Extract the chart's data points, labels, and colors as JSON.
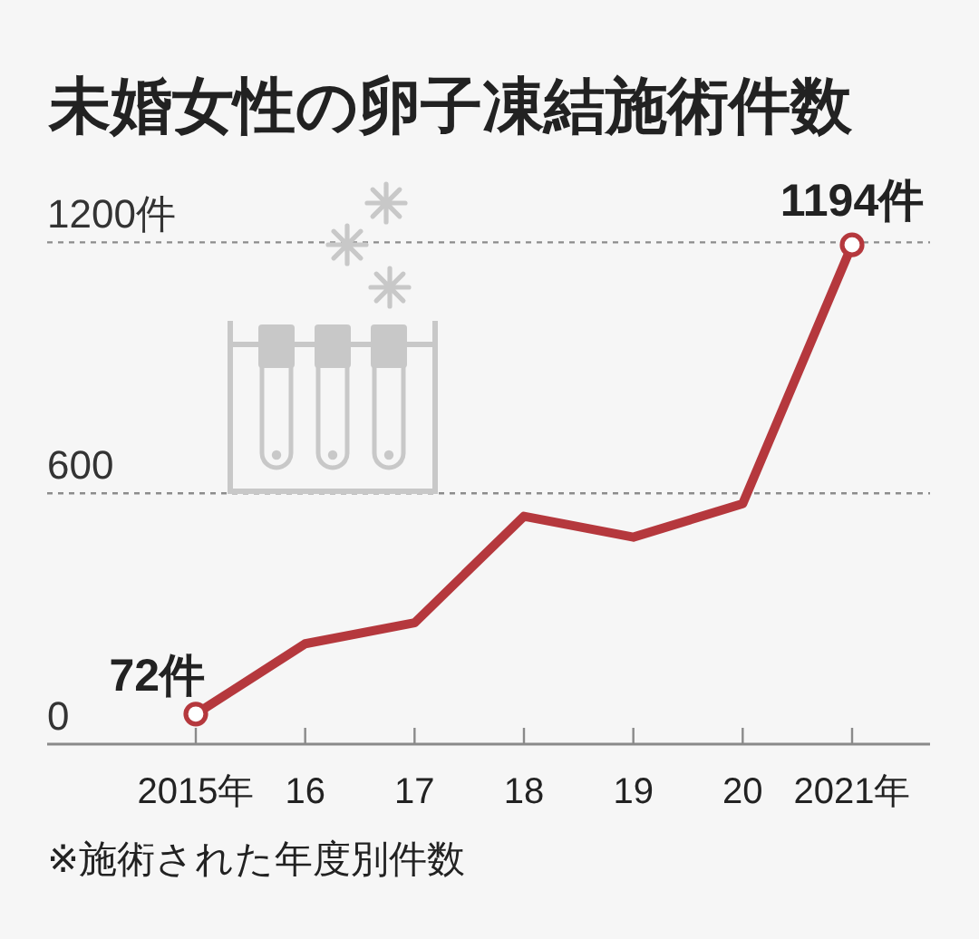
{
  "chart_data": {
    "type": "line",
    "title": "未婚女性の卵子凍結施術件数",
    "categories": [
      "2015年",
      "16",
      "17",
      "18",
      "19",
      "20",
      "2021年"
    ],
    "series": [
      {
        "color": "#b5383d",
        "marker": "none",
        "values": [
          72,
          240,
          290,
          545,
          495,
          575,
          1194
        ]
      },
      {
        "type": "scatter",
        "color": "#b5383d",
        "marker": "circle",
        "values": [
          72,
          null,
          null,
          null,
          null,
          null,
          1194
        ],
        "value_labels": [
          "72件",
          null,
          null,
          null,
          null,
          null,
          "1194件"
        ]
      }
    ],
    "ylim": [
      0,
      1200
    ],
    "yticks": [
      0,
      600,
      {
        "value": 1200,
        "label": "1200件"
      }
    ],
    "grid": "y",
    "annotations": [
      "※施術された年度別件数"
    ]
  }
}
